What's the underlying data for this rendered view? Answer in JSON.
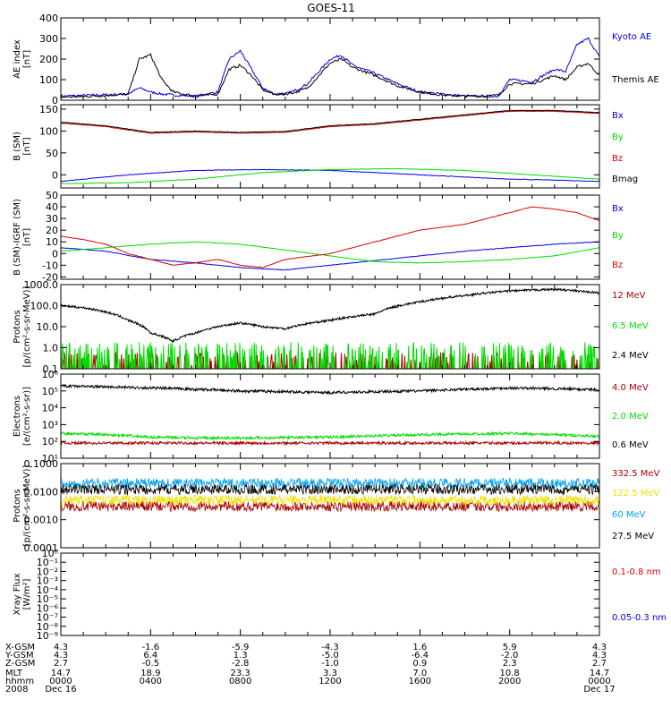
{
  "title": "GOES-11",
  "colors": {
    "black": "#000000",
    "blue": "#0000e0",
    "green": "#00dd00",
    "red": "#dd0000",
    "darkred": "#aa0000",
    "yellow": "#f0e000",
    "cyan": "#00a0f0"
  },
  "chart_data": [
    {
      "type": "line",
      "ylabel": [
        "AE index",
        "[nT]"
      ],
      "ylim": [
        0,
        400
      ],
      "yscale": "linear",
      "yticks": [
        "0",
        "100",
        "200",
        "300",
        "400"
      ],
      "series": [
        {
          "name": "Kyoto AE",
          "color": "blue",
          "x": [
            0,
            1.5,
            3,
            3.5,
            4,
            4.5,
            5,
            6,
            7,
            7.5,
            8,
            8.5,
            9,
            9.5,
            10,
            10.5,
            11,
            12,
            12.5,
            13,
            14,
            15,
            16,
            17,
            18,
            19,
            19.5,
            20,
            21,
            22,
            22.5,
            23,
            23.5,
            24
          ],
          "y": [
            20,
            25,
            30,
            60,
            40,
            30,
            25,
            20,
            40,
            200,
            240,
            150,
            60,
            30,
            30,
            50,
            80,
            200,
            220,
            170,
            130,
            80,
            40,
            30,
            20,
            20,
            20,
            100,
            90,
            150,
            140,
            270,
            300,
            210
          ]
        },
        {
          "name": "Themis AE",
          "color": "black",
          "x": [
            0,
            1.5,
            3,
            3.5,
            4,
            4.5,
            5,
            6,
            7,
            7.5,
            8,
            8.5,
            9,
            9.5,
            10,
            10.5,
            11,
            12,
            12.5,
            13,
            14,
            15,
            16,
            17,
            18,
            19,
            19.5,
            20,
            21,
            22,
            22.5,
            23,
            23.5,
            24
          ],
          "y": [
            15,
            20,
            30,
            200,
            220,
            100,
            40,
            20,
            30,
            150,
            170,
            120,
            50,
            30,
            30,
            40,
            60,
            180,
            200,
            160,
            120,
            70,
            40,
            25,
            20,
            20,
            25,
            80,
            80,
            120,
            100,
            160,
            180,
            120
          ]
        }
      ]
    },
    {
      "type": "line",
      "ylabel": [
        "B (SM)",
        "[nT]"
      ],
      "ylim": [
        -30,
        160
      ],
      "yscale": "linear",
      "yticks": [
        "-50",
        "0",
        "50",
        "100",
        "150"
      ],
      "series": [
        {
          "name": "Bx",
          "color": "blue",
          "x": [
            0,
            3,
            6,
            9,
            12,
            16,
            20,
            22,
            24
          ],
          "y": [
            -15,
            0,
            10,
            12,
            10,
            0,
            -10,
            -12,
            -15
          ]
        },
        {
          "name": "By",
          "color": "green",
          "x": [
            0,
            3,
            6,
            9,
            12,
            15,
            18,
            21,
            24
          ],
          "y": [
            -20,
            -18,
            -10,
            5,
            12,
            14,
            10,
            0,
            -10
          ]
        },
        {
          "name": "Bz",
          "color": "red",
          "x": [
            0,
            2,
            4,
            6,
            8,
            10,
            12,
            14,
            16,
            18,
            20,
            22,
            24
          ],
          "y": [
            118,
            110,
            95,
            98,
            95,
            97,
            110,
            115,
            125,
            135,
            145,
            145,
            140
          ]
        },
        {
          "name": "Bmag",
          "color": "black",
          "x": [
            0,
            2,
            4,
            6,
            8,
            10,
            12,
            14,
            16,
            18,
            20,
            22,
            24
          ],
          "y": [
            120,
            112,
            97,
            100,
            97,
            99,
            112,
            117,
            127,
            137,
            147,
            147,
            142
          ]
        }
      ]
    },
    {
      "type": "line",
      "ylabel": [
        "B (SM)-IGRF (SM)",
        "[nT]"
      ],
      "ylim": [
        -22,
        50
      ],
      "yscale": "linear",
      "yticks": [
        "-20",
        "-10",
        "0",
        "10",
        "20",
        "30",
        "40",
        "50"
      ],
      "series": [
        {
          "name": "Bx",
          "color": "blue",
          "x": [
            0,
            2,
            4,
            6,
            8,
            10,
            12,
            14,
            16,
            18,
            20,
            22,
            24
          ],
          "y": [
            5,
            2,
            -5,
            -8,
            -12,
            -14,
            -10,
            -6,
            -2,
            2,
            5,
            8,
            10
          ]
        },
        {
          "name": "By",
          "color": "green",
          "x": [
            0,
            2,
            4,
            6,
            8,
            10,
            12,
            14,
            16,
            18,
            20,
            22,
            24
          ],
          "y": [
            2,
            5,
            8,
            10,
            8,
            3,
            -2,
            -7,
            -8,
            -7,
            -5,
            -2,
            5
          ]
        },
        {
          "name": "Bz",
          "color": "red",
          "x": [
            0,
            1,
            2,
            3,
            4,
            5,
            6,
            7,
            8,
            9,
            10,
            12,
            14,
            16,
            18,
            20,
            21,
            22,
            23,
            24
          ],
          "y": [
            15,
            12,
            8,
            0,
            -5,
            -10,
            -8,
            -5,
            -10,
            -12,
            -5,
            0,
            10,
            20,
            25,
            35,
            40,
            38,
            35,
            28
          ]
        }
      ]
    },
    {
      "type": "line",
      "ylabel": [
        "Protons",
        "[p/(cm²-s-sr-MeV)]"
      ],
      "ylim": [
        0.1,
        1000
      ],
      "yscale": "log",
      "yticks": [
        "0.1",
        "1.0",
        "10.0",
        "100.0",
        "1000.0"
      ],
      "series": [
        {
          "name": "12 MeV",
          "color": "darkred",
          "x": [
            0,
            24
          ],
          "y": [
            0.15,
            0.15
          ]
        },
        {
          "name": "6.5 MeV",
          "color": "green",
          "x": [
            0,
            24
          ],
          "y": [
            0.2,
            0.2
          ]
        },
        {
          "name": "2.4 MeV",
          "color": "black",
          "x": [
            0,
            1,
            2,
            3,
            4,
            5,
            6,
            7,
            8,
            9,
            10,
            12,
            14,
            16,
            18,
            20,
            22,
            23,
            24
          ],
          "y": [
            100,
            80,
            50,
            20,
            5,
            2,
            5,
            10,
            15,
            10,
            8,
            20,
            40,
            150,
            300,
            500,
            600,
            500,
            400
          ]
        }
      ]
    },
    {
      "type": "line",
      "ylabel": [
        "Electrons",
        "[e/(cm²-s-sr)]"
      ],
      "ylim": [
        10,
        1000000
      ],
      "yscale": "log",
      "yticks": [
        "10¹",
        "10²",
        "10³",
        "10⁴",
        "10⁵",
        "10⁶"
      ],
      "series": [
        {
          "name": "4.0 MeV",
          "color": "darkred",
          "x": [
            0,
            24
          ],
          "y": [
            80,
            80
          ]
        },
        {
          "name": "2.0 MeV",
          "color": "green",
          "x": [
            0,
            2,
            4,
            6,
            8,
            12,
            16,
            20,
            24
          ],
          "y": [
            300,
            250,
            180,
            160,
            160,
            180,
            250,
            300,
            200
          ]
        },
        {
          "name": "0.6 MeV",
          "color": "black",
          "x": [
            0,
            4,
            8,
            12,
            16,
            20,
            24
          ],
          "y": [
            200000,
            150000,
            100000,
            80000,
            100000,
            150000,
            120000
          ]
        }
      ]
    },
    {
      "type": "line",
      "ylabel": [
        "Protons",
        "[p/(cm²-s-sr-MeV)]"
      ],
      "ylim": [
        0.0001,
        0.1
      ],
      "yscale": "log",
      "yticks": [
        "0.0001",
        "0.0010",
        "0.0100",
        "0.1000"
      ],
      "series": [
        {
          "name": "332.5 MeV",
          "color": "darkred",
          "x": [
            0,
            24
          ],
          "y": [
            0.003,
            0.003
          ]
        },
        {
          "name": "122.5 MeV",
          "color": "yellow",
          "x": [
            0,
            24
          ],
          "y": [
            0.005,
            0.005
          ]
        },
        {
          "name": "60 MeV",
          "color": "cyan",
          "x": [
            0,
            24
          ],
          "y": [
            0.02,
            0.02
          ]
        },
        {
          "name": "27.5 MeV",
          "color": "black",
          "x": [
            0,
            24
          ],
          "y": [
            0.012,
            0.012
          ]
        }
      ]
    },
    {
      "type": "line",
      "ylabel": [
        "Xray Flux",
        "[W/m²]"
      ],
      "ylim": [
        1e-09,
        1
      ],
      "yscale": "log",
      "yticks": [
        "10⁻⁹",
        "10⁻⁸",
        "10⁻⁷",
        "10⁻⁶",
        "10⁻⁵",
        "10⁻⁴",
        "10⁻³",
        "10⁻²",
        "10⁻¹",
        "10⁰"
      ],
      "series": [
        {
          "name": "0.1-0.8 nm",
          "color": "red",
          "x": [],
          "y": []
        },
        {
          "name": "0.05-0.3 nm",
          "color": "blue",
          "x": [],
          "y": []
        }
      ]
    }
  ],
  "footer": {
    "row_labels": [
      "X-GSM",
      "Y-GSM",
      "Z-GSM",
      "MLT",
      "hhmm",
      "2008"
    ],
    "columns": [
      [
        "4.3",
        "4.3",
        "2.7",
        "14.7",
        "0000",
        "Dec 16"
      ],
      [
        "-1.6",
        "6.4",
        "-0.5",
        "18.9",
        "0400",
        ""
      ],
      [
        "-5.9",
        "1.3",
        "-2.8",
        "23.3",
        "0800",
        ""
      ],
      [
        "-4.3",
        "-5.0",
        "-1.0",
        "3.3",
        "1200",
        ""
      ],
      [
        "1.6",
        "-6.4",
        "0.9",
        "7.0",
        "1600",
        ""
      ],
      [
        "5.9",
        "-2.0",
        "2.3",
        "10.8",
        "2000",
        ""
      ],
      [
        "4.3",
        "4.3",
        "2.7",
        "14.7",
        "0000",
        "Dec 17"
      ]
    ]
  }
}
